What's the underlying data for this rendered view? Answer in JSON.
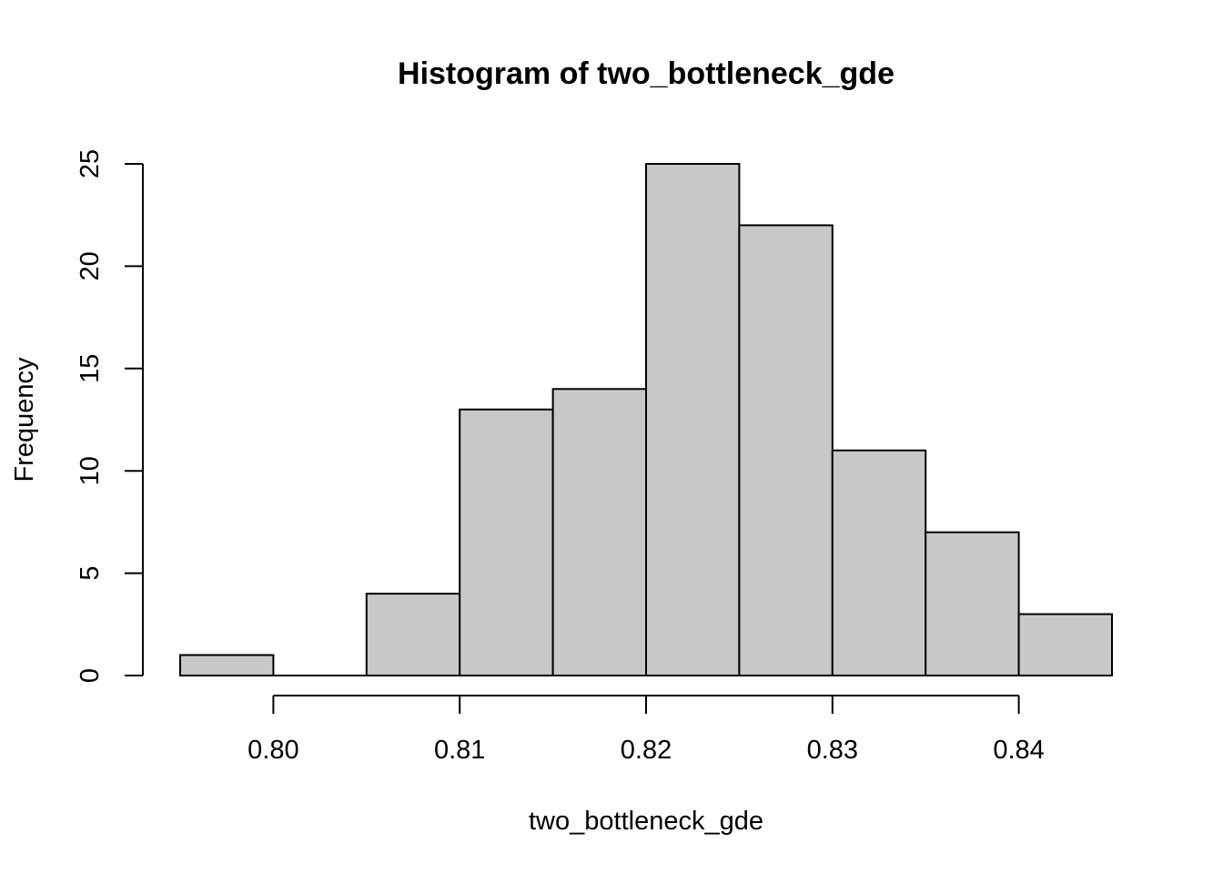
{
  "chart_data": {
    "type": "bar",
    "title": "Histogram of two_bottleneck_gde",
    "xlabel": "two_bottleneck_gde",
    "ylabel": "Frequency",
    "bin_edges": [
      0.795,
      0.8,
      0.805,
      0.81,
      0.815,
      0.82,
      0.825,
      0.83,
      0.835,
      0.84,
      0.845
    ],
    "values": [
      1,
      0,
      4,
      13,
      14,
      25,
      22,
      11,
      7,
      3
    ],
    "xlim": [
      0.795,
      0.845
    ],
    "ylim": [
      0,
      25
    ],
    "x_ticks": [
      0.8,
      0.81,
      0.82,
      0.83,
      0.84
    ],
    "x_tick_labels": [
      "0.80",
      "0.81",
      "0.82",
      "0.83",
      "0.84"
    ],
    "y_ticks": [
      0,
      5,
      10,
      15,
      20,
      25
    ],
    "y_tick_labels": [
      "0",
      "5",
      "10",
      "15",
      "20",
      "25"
    ],
    "grid": false,
    "bar_fill": "#c8c8c8",
    "bar_stroke": "#000000"
  }
}
